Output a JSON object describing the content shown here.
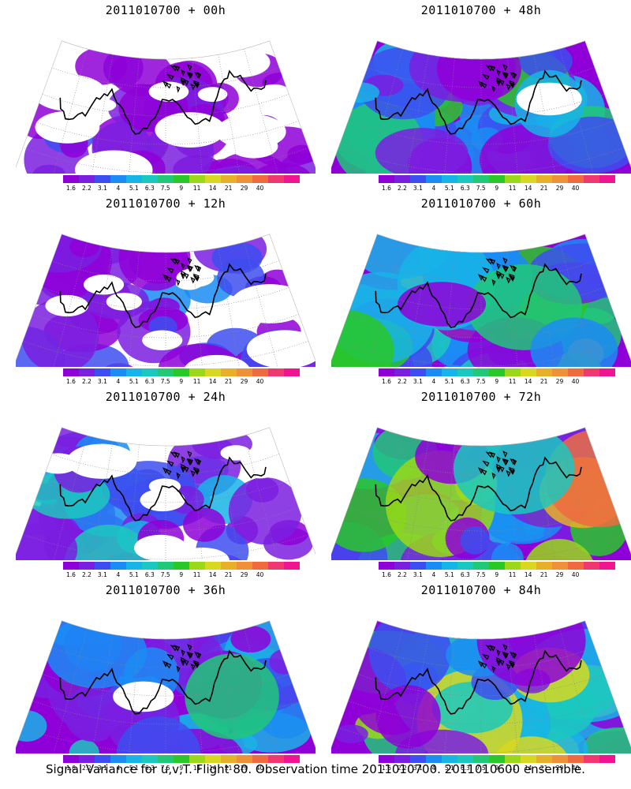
{
  "panels": [
    {
      "title": "2011010700 + 00h",
      "level": 0.15
    },
    {
      "title": "2011010700 + 48h",
      "level": 0.55
    },
    {
      "title": "2011010700 + 12h",
      "level": 0.25
    },
    {
      "title": "2011010700 + 60h",
      "level": 0.65
    },
    {
      "title": "2011010700 + 24h",
      "level": 0.35
    },
    {
      "title": "2011010700 + 72h",
      "level": 0.78
    },
    {
      "title": "2011010700 + 36h",
      "level": 0.45
    },
    {
      "title": "2011010700 + 84h",
      "level": 0.85
    }
  ],
  "colorbar": {
    "labels": [
      "1.6",
      "2.2",
      "3.1",
      "4",
      "5.1",
      "6.3",
      "7.5",
      "9",
      "11",
      "14",
      "21",
      "29",
      "40"
    ],
    "colors": [
      "#8f00d8",
      "#7a1fe0",
      "#3d4ef0",
      "#1a8cf4",
      "#17b4e8",
      "#1bc8c0",
      "#20c878",
      "#28c828",
      "#9ad818",
      "#d8d820",
      "#e8b028",
      "#f09038",
      "#f06a40",
      "#f03870",
      "#f01490"
    ]
  },
  "footer": "Signal Variance for u,v,T. Flight 80. Observation time 2011010700. 2011010600 ensemble."
}
